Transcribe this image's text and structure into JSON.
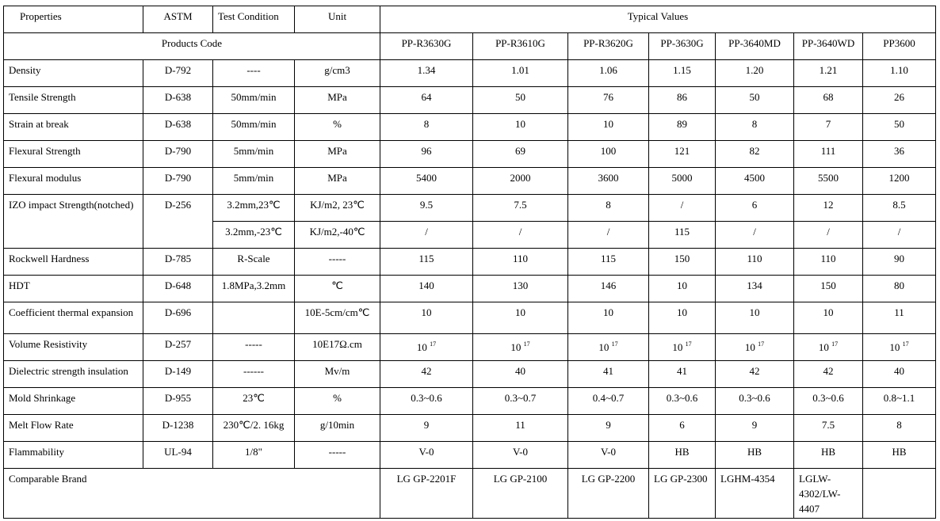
{
  "header": {
    "properties": "Properties",
    "astm": "ASTM",
    "test_condition": "Test Condition",
    "unit": "Unit",
    "typical_values": "Typical Values"
  },
  "products_code_label": "Products Code",
  "products": [
    "PP-R3630G",
    "PP-R3610G",
    "PP-R3620G",
    "PP-3630G",
    "PP-3640MD",
    "PP-3640WD",
    "PP3600"
  ],
  "rows": [
    {
      "property": "Density",
      "astm": "D-792",
      "condition": "----",
      "unit": "g/cm3",
      "values": [
        "1.34",
        "1.01",
        "1.06",
        "1.15",
        "1.20",
        "1.21",
        "1.10"
      ]
    },
    {
      "property": "Tensile Strength",
      "astm": "D-638",
      "condition": "50mm/min",
      "unit": "MPa",
      "values": [
        "64",
        "50",
        "76",
        "86",
        "50",
        "68",
        "26"
      ]
    },
    {
      "property": "Strain at break",
      "astm": "D-638",
      "condition": "50mm/min",
      "unit": "%",
      "values": [
        "8",
        "10",
        "10",
        "89",
        "8",
        "7",
        "50"
      ]
    },
    {
      "property": "Flexural Strength",
      "astm": "D-790",
      "condition": "5mm/min",
      "unit": "MPa",
      "values": [
        "96",
        "69",
        "100",
        "121",
        "82",
        "111",
        "36"
      ]
    },
    {
      "property": "Flexural modulus",
      "astm": "D-790",
      "condition": "5mm/min",
      "unit": "MPa",
      "values": [
        "5400",
        "2000",
        "3600",
        "5000",
        "4500",
        "5500",
        "1200"
      ]
    },
    {
      "property": "IZO impact Strength(notched)",
      "astm": "D-256",
      "condition": "3.2mm,23℃",
      "unit": "KJ/m2, 23℃",
      "values": [
        "9.5",
        "7.5",
        "8",
        "/",
        "6",
        "12",
        "8.5"
      ],
      "sub": {
        "condition": "3.2mm,-23℃",
        "unit": "KJ/m2,-40℃",
        "values": [
          "/",
          "/",
          "/",
          "115",
          "/",
          "/",
          "/"
        ]
      }
    },
    {
      "property": "Rockwell Hardness",
      "astm": "D-785",
      "condition": "R-Scale",
      "unit": "-----",
      "values": [
        "115",
        "110",
        "115",
        "150",
        "110",
        "110",
        "90"
      ]
    },
    {
      "property": "HDT",
      "astm": "D-648",
      "condition": "1.8MPa,3.2mm",
      "unit": "℃",
      "values": [
        "140",
        "130",
        "146",
        "10",
        "134",
        "150",
        "80"
      ]
    },
    {
      "property": "Coefficient thermal expansion",
      "astm": "D-696",
      "condition": "",
      "unit": "10E-5cm/cm℃",
      "values": [
        "10",
        "10",
        "10",
        "10",
        "10",
        "10",
        "11"
      ]
    },
    {
      "property": "Volume Resistivity",
      "astm": "D-257",
      "condition": "-----",
      "unit": "10E17Ω.cm",
      "values": [
        "10",
        "10",
        "10",
        "10",
        "10",
        "10",
        "10"
      ],
      "exponent": "17"
    },
    {
      "property": "Dielectric strength insulation",
      "astm": "D-149",
      "condition": "------",
      "unit": "Mv/m",
      "values": [
        "42",
        "40",
        "41",
        "41",
        "42",
        "42",
        "40"
      ]
    },
    {
      "property": "Mold Shrinkage",
      "astm": "D-955",
      "condition": "23℃",
      "unit": "%",
      "values": [
        "0.3~0.6",
        "0.3~0.7",
        "0.4~0.7",
        "0.3~0.6",
        "0.3~0.6",
        "0.3~0.6",
        "0.8~1.1"
      ]
    },
    {
      "property": "Melt Flow Rate",
      "astm": "D-1238",
      "condition": "230℃/2. 16kg",
      "unit": "g/10min",
      "values": [
        "9",
        "11",
        "9",
        "6",
        "9",
        "7.5",
        "8"
      ]
    },
    {
      "property": "Flammability",
      "astm": "UL-94",
      "condition": "1/8\"",
      "unit": "-----",
      "values": [
        "V-0",
        "V-0",
        "V-0",
        "HB",
        "HB",
        "HB",
        "HB"
      ]
    }
  ],
  "comparable_brand": {
    "label": "Comparable Brand",
    "values": [
      "LG GP-2201F",
      "LG GP-2100",
      "LG GP-2200",
      "LG GP-2300",
      "LGHM-4354",
      "LGLW-4302/LW-4407",
      ""
    ]
  }
}
